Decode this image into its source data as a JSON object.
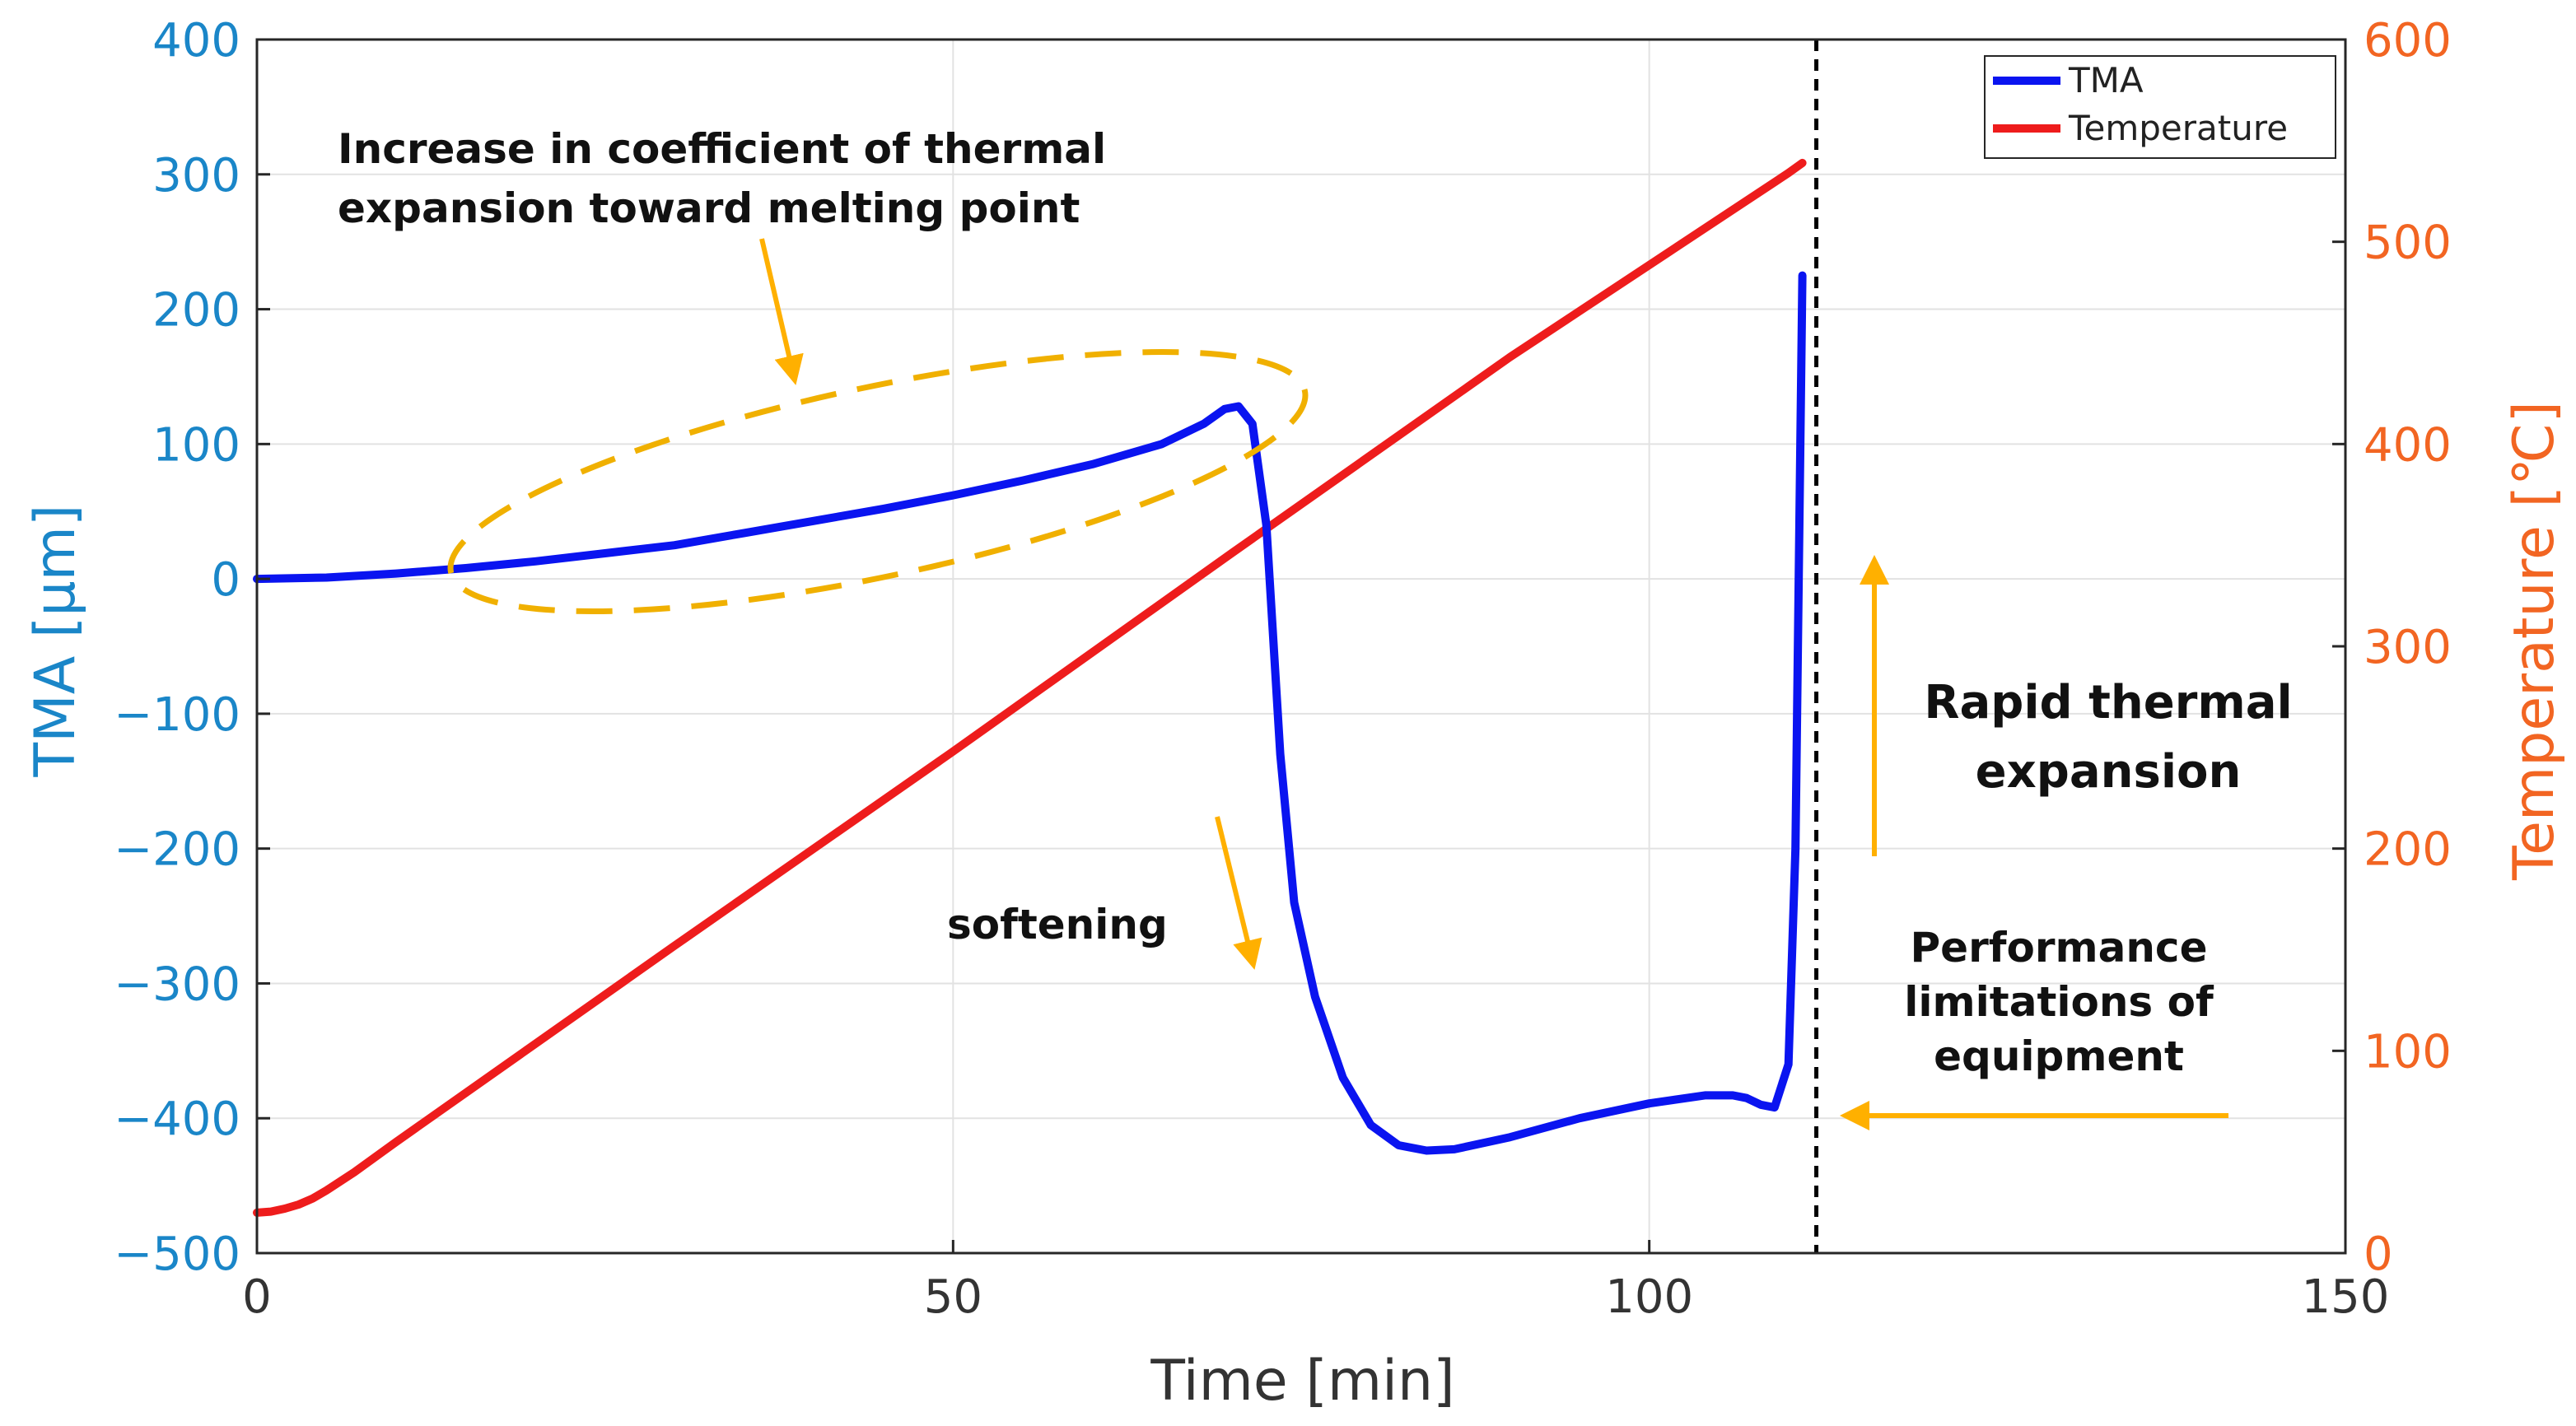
{
  "chart_data": {
    "type": "line",
    "title": "",
    "xlabel": "Time [min]",
    "ylabel_left": "TMA [μm]",
    "ylabel_right": "Temperature [℃]",
    "xlim": [
      0,
      150
    ],
    "ylim_left": [
      -500,
      400
    ],
    "ylim_right": [
      0,
      600
    ],
    "x_ticks": [
      "0",
      "50",
      "100",
      "150"
    ],
    "y_left_ticks": [
      "400",
      "300",
      "200",
      "100",
      "0",
      "−100",
      "−200",
      "−300",
      "−400",
      "−500"
    ],
    "y_right_ticks": [
      "600",
      "500",
      "400",
      "300",
      "200",
      "100",
      "0"
    ],
    "grid": true,
    "legend_position": "top-right",
    "series": [
      {
        "name": "TMA",
        "axis": "left",
        "color": "#0a14f0",
        "x": [
          0,
          5,
          10,
          15,
          20,
          25,
          30,
          35,
          40,
          45,
          50,
          55,
          60,
          65,
          68,
          69.5,
          70.5,
          71.5,
          72.5,
          73.5,
          74.5,
          76,
          78,
          80,
          82,
          84,
          86,
          90,
          95,
          100,
          104,
          106,
          107,
          108,
          109,
          110,
          110.5,
          111
        ],
        "y": [
          0,
          1,
          4,
          8,
          13,
          19,
          25,
          34,
          43,
          52,
          62,
          73,
          85,
          100,
          115,
          126,
          128,
          115,
          40,
          -130,
          -240,
          -310,
          -370,
          -405,
          -420,
          -424,
          -423,
          -414,
          -400,
          -389,
          -383,
          -383,
          -385,
          -390,
          -392,
          -360,
          -200,
          225
        ]
      },
      {
        "name": "Temperature",
        "axis": "right",
        "color": "#ee1c1c",
        "x": [
          0,
          1,
          2,
          3,
          4,
          5,
          7,
          10,
          30,
          50,
          70,
          90,
          110,
          111
        ],
        "y": [
          20,
          20.5,
          22,
          24,
          27,
          31,
          40,
          55,
          152,
          248,
          346,
          443,
          534,
          539
        ]
      }
    ],
    "vline": {
      "x": 112,
      "style": "dashed",
      "color": "#000000"
    },
    "annotations": [
      "Increase in coefficient of thermal",
      "expansion toward melting point",
      "softening",
      "Rapid thermal",
      "expansion",
      "Performance",
      "limitations of",
      "equipment"
    ]
  }
}
